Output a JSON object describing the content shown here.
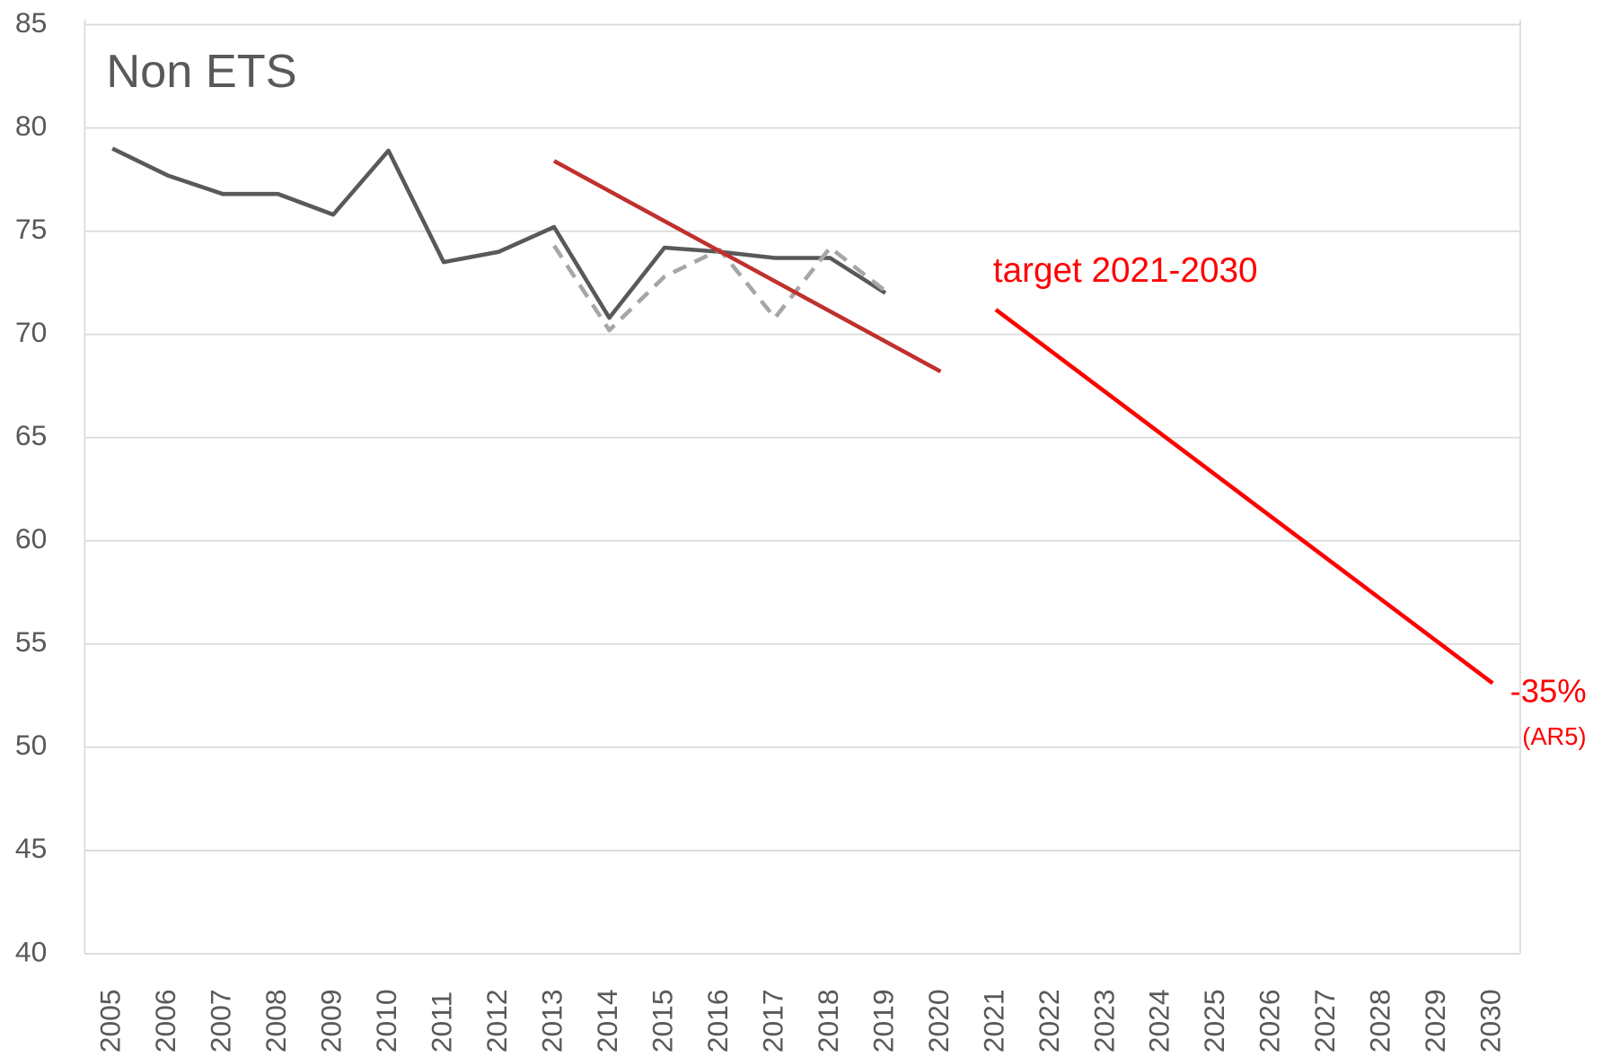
{
  "chart_data": {
    "type": "line",
    "title": "Non ETS",
    "categories": [
      "2005",
      "2006",
      "2007",
      "2008",
      "2009",
      "2010",
      "2011",
      "2012",
      "2013",
      "2014",
      "2015",
      "2016",
      "2017",
      "2018",
      "2019",
      "2020",
      "2021",
      "2022",
      "2023",
      "2024",
      "2025",
      "2026",
      "2027",
      "2028",
      "2029",
      "2030"
    ],
    "series": [
      {
        "color": "#595959",
        "dash": false,
        "values": [
          79,
          77.7,
          76.8,
          76.8,
          75.8,
          78.9,
          73.5,
          74,
          75.2,
          70.8,
          74.2,
          74,
          73.7,
          73.7,
          72,
          null,
          null,
          null,
          null,
          null,
          null,
          null,
          null,
          null,
          null,
          null
        ]
      },
      {
        "color": "#a6a6a6",
        "dash": true,
        "values": [
          null,
          null,
          null,
          null,
          null,
          null,
          null,
          null,
          74.3,
          70.2,
          72.8,
          74.1,
          70.8,
          74.2,
          72.1,
          null,
          null,
          null,
          null,
          null,
          null,
          null,
          null,
          null,
          null,
          null
        ]
      },
      {
        "color": "#c0302e",
        "dash": false,
        "x": [
          "2013",
          "2020"
        ],
        "values": [
          78.4,
          68.2
        ]
      },
      {
        "color": "#ff0000",
        "dash": false,
        "x": [
          "2021",
          "2030"
        ],
        "values": [
          71.2,
          53.1
        ]
      }
    ],
    "annotations": [
      "target 2021-2030",
      "-35%",
      "(AR5)"
    ],
    "ylim": [
      40,
      85
    ],
    "yticks": [
      40,
      45,
      50,
      55,
      60,
      65,
      70,
      75,
      80,
      85
    ],
    "grid": true
  }
}
